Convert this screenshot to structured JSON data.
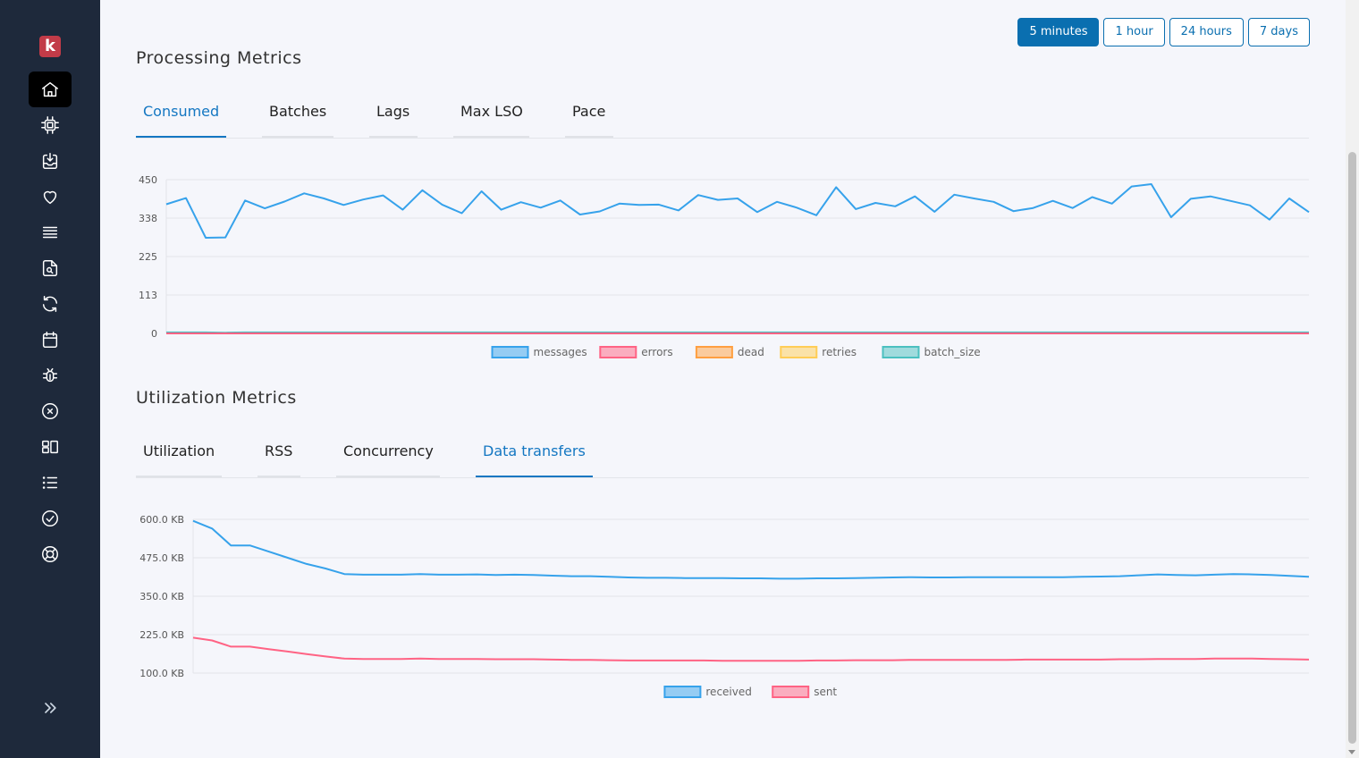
{
  "sidebar": {
    "logo_letter": "k",
    "items": [
      {
        "icon": "home-icon",
        "active": true
      },
      {
        "icon": "cpu-icon",
        "active": false
      },
      {
        "icon": "inbox-download-icon",
        "active": false
      },
      {
        "icon": "heart-icon",
        "active": false
      },
      {
        "icon": "stack-icon",
        "active": false
      },
      {
        "icon": "file-search-icon",
        "active": false
      },
      {
        "icon": "refresh-icon",
        "active": false
      },
      {
        "icon": "calendar-icon",
        "active": false
      },
      {
        "icon": "bug-icon",
        "active": false
      },
      {
        "icon": "x-circle-icon",
        "active": false
      },
      {
        "icon": "layout-icon",
        "active": false
      },
      {
        "icon": "list-icon",
        "active": false
      },
      {
        "icon": "check-circle-icon",
        "active": false
      },
      {
        "icon": "lifebuoy-icon",
        "active": false
      }
    ],
    "expand_icon": "chevrons-right-icon"
  },
  "time_range": {
    "buttons": [
      "5 minutes",
      "1 hour",
      "24 hours",
      "7 days"
    ],
    "selected": "5 minutes"
  },
  "processing": {
    "title": "Processing Metrics",
    "tabs": [
      "Consumed",
      "Batches",
      "Lags",
      "Max LSO",
      "Pace"
    ],
    "active_tab": "Consumed"
  },
  "utilization": {
    "title": "Utilization Metrics",
    "tabs": [
      "Utilization",
      "RSS",
      "Concurrency",
      "Data transfers"
    ],
    "active_tab": "Data transfers"
  },
  "colors": {
    "accent": "#0a6fb0",
    "sidebar_bg": "#1e293b",
    "logo": "#c23b48",
    "messages": "#36a2eb",
    "errors": "#ff6384",
    "dead": "#ff9f40",
    "retries": "#ffcd56",
    "batch_size": "#4bc0c0"
  },
  "chart_data": [
    {
      "type": "line",
      "title": "",
      "ylim": [
        0,
        450
      ],
      "yticks": [
        "450",
        "338",
        "225",
        "113",
        "0"
      ],
      "grid": true,
      "legend_position": "bottom",
      "series": [
        {
          "name": "messages",
          "color": "#36a2eb",
          "values": [
            378,
            396,
            280,
            281,
            389,
            366,
            386,
            410,
            395,
            376,
            392,
            404,
            362,
            419,
            377,
            352,
            416,
            362,
            384,
            368,
            389,
            348,
            357,
            380,
            376,
            377,
            360,
            405,
            391,
            395,
            355,
            385,
            368,
            346,
            428,
            364,
            382,
            372,
            401,
            356,
            406,
            395,
            385,
            358,
            367,
            388,
            367,
            399,
            380,
            430,
            437,
            340,
            394,
            401,
            388,
            375,
            333,
            395,
            355
          ]
        },
        {
          "name": "errors",
          "color": "#ff6384",
          "values": [
            0,
            0,
            0,
            0,
            0,
            0,
            0,
            0,
            0,
            0,
            0,
            0,
            0,
            0,
            0,
            0,
            0,
            0,
            0,
            0,
            0,
            0,
            0,
            0,
            0,
            0,
            0,
            0,
            0,
            0,
            0,
            0,
            0,
            0,
            0,
            0,
            0,
            0,
            0,
            0,
            0,
            0,
            0,
            0,
            0,
            0,
            0,
            0,
            0,
            0,
            0,
            0,
            0,
            0,
            0,
            0,
            0,
            0,
            0
          ]
        },
        {
          "name": "dead",
          "color": "#ff9f40",
          "values": [
            0,
            0,
            0,
            0,
            0,
            0,
            0,
            0,
            0,
            0,
            0,
            0,
            0,
            0,
            0,
            0,
            0,
            0,
            0,
            0,
            0,
            0,
            0,
            0,
            0,
            0,
            0,
            0,
            0,
            0,
            0,
            0,
            0,
            0,
            0,
            0,
            0,
            0,
            0,
            0,
            0,
            0,
            0,
            0,
            0,
            0,
            0,
            0,
            0,
            0,
            0,
            0,
            0,
            0,
            0,
            0,
            0,
            0,
            0
          ]
        },
        {
          "name": "retries",
          "color": "#ffcd56",
          "values": [
            0,
            0,
            0,
            0,
            0,
            0,
            0,
            0,
            0,
            0,
            0,
            0,
            0,
            0,
            0,
            0,
            0,
            0,
            0,
            0,
            0,
            0,
            0,
            0,
            0,
            0,
            0,
            0,
            0,
            0,
            0,
            0,
            0,
            0,
            0,
            0,
            0,
            0,
            0,
            0,
            0,
            0,
            0,
            0,
            0,
            0,
            0,
            0,
            0,
            0,
            0,
            0,
            0,
            0,
            0,
            0,
            0,
            0,
            0
          ]
        },
        {
          "name": "batch_size",
          "color": "#4bc0c0",
          "values": [
            3,
            3,
            3,
            2,
            3,
            3,
            3,
            3,
            3,
            3,
            3,
            3,
            3,
            3,
            3,
            3,
            3,
            3,
            3,
            3,
            3,
            3,
            3,
            3,
            3,
            3,
            3,
            3,
            3,
            3,
            3,
            3,
            3,
            3,
            3,
            3,
            3,
            3,
            3,
            3,
            3,
            3,
            3,
            3,
            3,
            3,
            3,
            3,
            3,
            3,
            3,
            3,
            3,
            3,
            3,
            3,
            3,
            3,
            3
          ]
        }
      ]
    },
    {
      "type": "line",
      "title": "",
      "ylim": [
        100,
        600
      ],
      "yticks": [
        "600.0 KB",
        "475.0 KB",
        "350.0 KB",
        "225.0 KB",
        "100.0 KB"
      ],
      "unit": "KB",
      "grid": true,
      "legend_position": "bottom",
      "series": [
        {
          "name": "received",
          "color": "#36a2eb",
          "values": [
            595,
            570,
            515,
            515,
            495,
            475,
            455,
            440,
            422,
            420,
            420,
            420,
            422,
            420,
            420,
            421,
            419,
            420,
            419,
            417,
            415,
            415,
            413,
            411,
            410,
            410,
            409,
            409,
            409,
            408,
            408,
            407,
            407,
            408,
            408,
            409,
            410,
            411,
            412,
            411,
            411,
            412,
            412,
            412,
            412,
            412,
            412,
            413,
            414,
            415,
            418,
            421,
            419,
            418,
            420,
            422,
            421,
            419,
            416,
            413
          ]
        },
        {
          "name": "sent",
          "color": "#ff6384",
          "values": [
            215,
            206,
            186,
            186,
            178,
            170,
            162,
            154,
            147,
            146,
            146,
            146,
            147,
            146,
            146,
            146,
            145,
            145,
            145,
            144,
            143,
            143,
            142,
            141,
            141,
            141,
            141,
            141,
            140,
            140,
            140,
            140,
            140,
            141,
            141,
            142,
            142,
            142,
            143,
            143,
            143,
            143,
            143,
            143,
            144,
            144,
            144,
            144,
            144,
            145,
            145,
            146,
            146,
            146,
            147,
            147,
            147,
            146,
            145,
            144
          ]
        }
      ]
    }
  ]
}
